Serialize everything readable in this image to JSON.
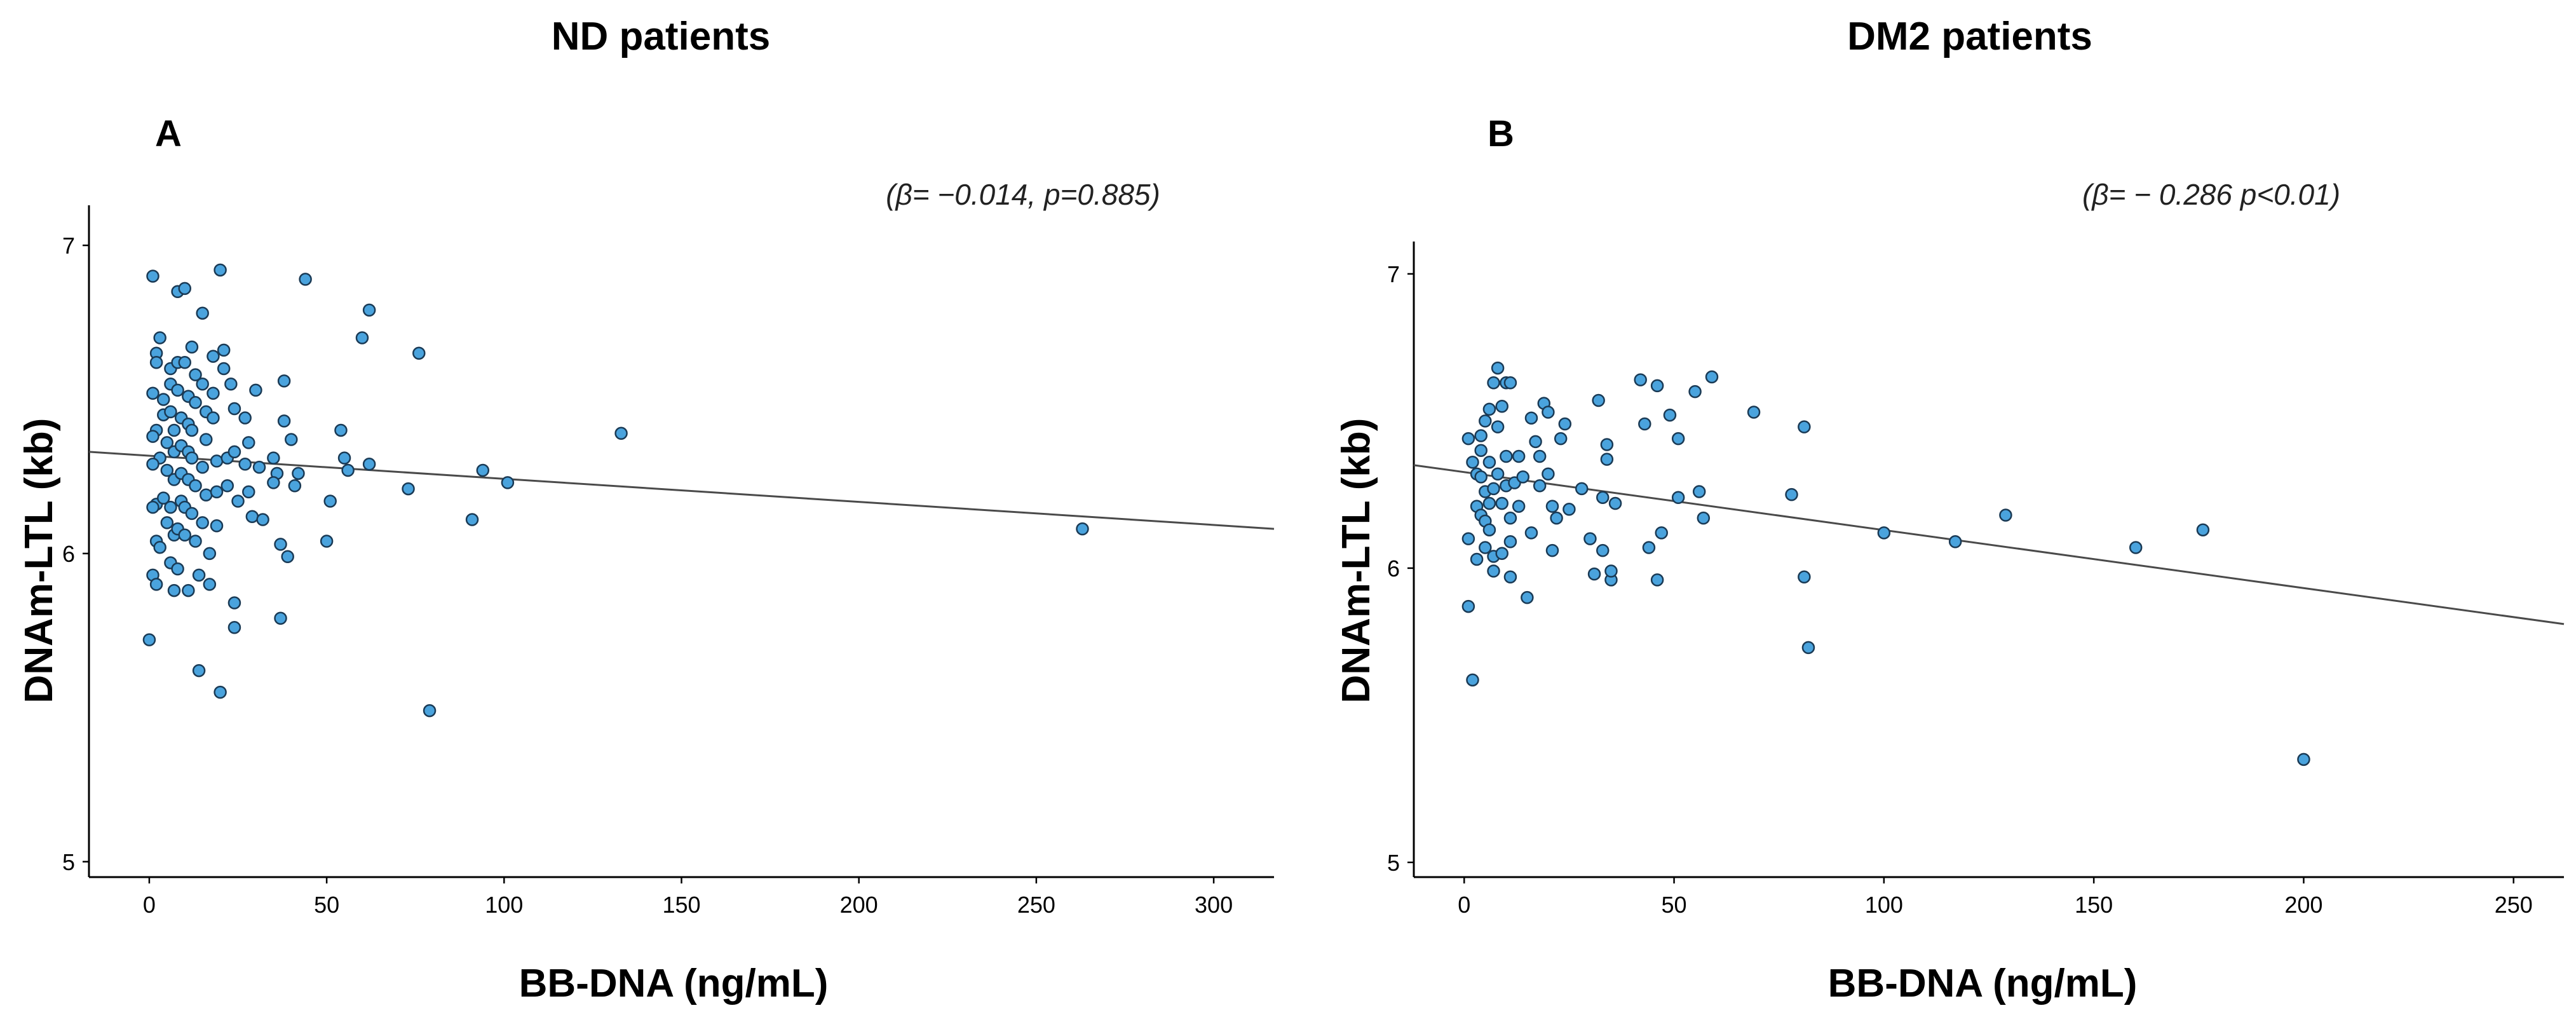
{
  "colors": {
    "point_fill": "#4aa3dd",
    "point_edge": "#1a3a55",
    "fit_line": "#4a4a4a"
  },
  "chart_data": [
    {
      "type": "scatter",
      "panel_label": "A",
      "title": "ND patients",
      "annotation": "(β= −0.014, p=0.885)",
      "xlabel": "BB-DNA (ng/mL)",
      "ylabel": "DNAm-LTL (kb)",
      "xlim": [
        -17,
        317
      ],
      "ylim": [
        4.95,
        7.13
      ],
      "xticks": [
        0,
        50,
        100,
        150,
        200,
        250,
        300
      ],
      "yticks": [
        5,
        6,
        7
      ],
      "fit": {
        "x": [
          -17,
          317
        ],
        "y": [
          6.33,
          6.08
        ]
      },
      "points": [
        [
          1,
          6.9
        ],
        [
          2,
          6.65
        ],
        [
          2,
          6.62
        ],
        [
          3,
          6.7
        ],
        [
          1,
          6.52
        ],
        [
          2,
          6.4
        ],
        [
          1,
          6.38
        ],
        [
          3,
          6.31
        ],
        [
          1,
          6.29
        ],
        [
          2,
          6.16
        ],
        [
          1,
          6.15
        ],
        [
          2,
          6.04
        ],
        [
          3,
          6.02
        ],
        [
          1,
          5.93
        ],
        [
          2,
          5.9
        ],
        [
          0,
          5.72
        ],
        [
          4,
          6.5
        ],
        [
          4,
          6.45
        ],
        [
          5,
          6.36
        ],
        [
          5,
          6.27
        ],
        [
          4,
          6.18
        ],
        [
          5,
          6.1
        ],
        [
          6,
          6.6
        ],
        [
          6,
          6.55
        ],
        [
          6,
          6.46
        ],
        [
          7,
          6.4
        ],
        [
          7,
          6.33
        ],
        [
          7,
          6.24
        ],
        [
          6,
          6.15
        ],
        [
          7,
          6.06
        ],
        [
          6,
          5.97
        ],
        [
          7,
          5.88
        ],
        [
          8,
          6.85
        ],
        [
          8,
          6.62
        ],
        [
          8,
          6.53
        ],
        [
          9,
          6.44
        ],
        [
          9,
          6.35
        ],
        [
          9,
          6.26
        ],
        [
          9,
          6.17
        ],
        [
          8,
          6.08
        ],
        [
          8,
          5.95
        ],
        [
          10,
          6.86
        ],
        [
          10,
          6.62
        ],
        [
          11,
          6.51
        ],
        [
          11,
          6.42
        ],
        [
          11,
          6.33
        ],
        [
          11,
          6.24
        ],
        [
          10,
          6.15
        ],
        [
          10,
          6.06
        ],
        [
          11,
          5.88
        ],
        [
          12,
          6.67
        ],
        [
          13,
          6.58
        ],
        [
          13,
          6.49
        ],
        [
          12,
          6.4
        ],
        [
          12,
          6.31
        ],
        [
          13,
          6.22
        ],
        [
          12,
          6.13
        ],
        [
          13,
          6.04
        ],
        [
          14,
          5.93
        ],
        [
          14,
          5.62
        ],
        [
          15,
          6.78
        ],
        [
          15,
          6.55
        ],
        [
          16,
          6.46
        ],
        [
          16,
          6.37
        ],
        [
          15,
          6.28
        ],
        [
          16,
          6.19
        ],
        [
          15,
          6.1
        ],
        [
          17,
          6.0
        ],
        [
          17,
          5.9
        ],
        [
          18,
          6.64
        ],
        [
          18,
          6.52
        ],
        [
          18,
          6.44
        ],
        [
          19,
          6.3
        ],
        [
          19,
          6.2
        ],
        [
          19,
          6.09
        ],
        [
          20,
          6.92
        ],
        [
          21,
          6.66
        ],
        [
          21,
          6.6
        ],
        [
          22,
          6.31
        ],
        [
          22,
          6.22
        ],
        [
          20,
          5.55
        ],
        [
          23,
          6.55
        ],
        [
          24,
          6.47
        ],
        [
          24,
          6.33
        ],
        [
          25,
          6.17
        ],
        [
          24,
          5.84
        ],
        [
          24,
          5.76
        ],
        [
          27,
          6.44
        ],
        [
          28,
          6.36
        ],
        [
          27,
          6.29
        ],
        [
          28,
          6.2
        ],
        [
          29,
          6.12
        ],
        [
          30,
          6.53
        ],
        [
          31,
          6.28
        ],
        [
          32,
          6.11
        ],
        [
          35,
          6.31
        ],
        [
          36,
          6.26
        ],
        [
          35,
          6.23
        ],
        [
          38,
          6.56
        ],
        [
          38,
          6.43
        ],
        [
          37,
          6.03
        ],
        [
          37,
          5.79
        ],
        [
          40,
          6.37
        ],
        [
          41,
          6.22
        ],
        [
          39,
          5.99
        ],
        [
          42,
          6.26
        ],
        [
          44,
          6.89
        ],
        [
          50,
          6.04
        ],
        [
          51,
          6.17
        ],
        [
          54,
          6.4
        ],
        [
          55,
          6.31
        ],
        [
          56,
          6.27
        ],
        [
          60,
          6.7
        ],
        [
          62,
          6.29
        ],
        [
          62,
          6.79
        ],
        [
          73,
          6.21
        ],
        [
          76,
          6.65
        ],
        [
          79,
          5.49
        ],
        [
          91,
          6.11
        ],
        [
          94,
          6.27
        ],
        [
          101,
          6.23
        ],
        [
          133,
          6.39
        ],
        [
          263,
          6.08
        ]
      ]
    },
    {
      "type": "scatter",
      "panel_label": "B",
      "title": "DM2 patients",
      "annotation": "(β= − 0.286 p<0.01)",
      "xlabel": "BB-DNA (ng/mL)",
      "ylabel": "DNAm-LTL (kb)",
      "xlim": [
        -12,
        262
      ],
      "ylim": [
        4.95,
        7.11
      ],
      "xticks": [
        0,
        50,
        100,
        150,
        200,
        250
      ],
      "yticks": [
        5,
        6,
        7
      ],
      "fit": {
        "x": [
          -12,
          262
        ],
        "y": [
          6.35,
          5.81
        ]
      },
      "points": [
        [
          1,
          6.44
        ],
        [
          1,
          6.1
        ],
        [
          1,
          5.87
        ],
        [
          2,
          6.36
        ],
        [
          2,
          5.62
        ],
        [
          3,
          6.32
        ],
        [
          3,
          6.21
        ],
        [
          3,
          6.03
        ],
        [
          4,
          6.45
        ],
        [
          4,
          6.4
        ],
        [
          4,
          6.31
        ],
        [
          4,
          6.18
        ],
        [
          5,
          6.5
        ],
        [
          5,
          6.26
        ],
        [
          5,
          6.16
        ],
        [
          5,
          6.07
        ],
        [
          6,
          6.54
        ],
        [
          6,
          6.36
        ],
        [
          6,
          6.22
        ],
        [
          6,
          6.13
        ],
        [
          7,
          6.63
        ],
        [
          7,
          6.27
        ],
        [
          7,
          6.04
        ],
        [
          7,
          5.99
        ],
        [
          8,
          6.68
        ],
        [
          8,
          6.48
        ],
        [
          8,
          6.32
        ],
        [
          9,
          6.55
        ],
        [
          9,
          6.22
        ],
        [
          9,
          6.05
        ],
        [
          10,
          6.63
        ],
        [
          10,
          6.38
        ],
        [
          10,
          6.28
        ],
        [
          11,
          6.63
        ],
        [
          11,
          6.17
        ],
        [
          11,
          6.09
        ],
        [
          11,
          5.97
        ],
        [
          12,
          6.29
        ],
        [
          13,
          6.38
        ],
        [
          13,
          6.21
        ],
        [
          14,
          6.31
        ],
        [
          15,
          5.9
        ],
        [
          16,
          6.51
        ],
        [
          16,
          6.12
        ],
        [
          17,
          6.43
        ],
        [
          18,
          6.38
        ],
        [
          18,
          6.28
        ],
        [
          19,
          6.56
        ],
        [
          20,
          6.53
        ],
        [
          20,
          6.32
        ],
        [
          21,
          6.21
        ],
        [
          21,
          6.06
        ],
        [
          22,
          6.17
        ],
        [
          23,
          6.44
        ],
        [
          24,
          6.49
        ],
        [
          25,
          6.2
        ],
        [
          28,
          6.27
        ],
        [
          30,
          6.1
        ],
        [
          31,
          5.98
        ],
        [
          32,
          6.57
        ],
        [
          33,
          6.24
        ],
        [
          33,
          6.06
        ],
        [
          34,
          6.37
        ],
        [
          34,
          6.42
        ],
        [
          35,
          5.96
        ],
        [
          35,
          5.99
        ],
        [
          36,
          6.22
        ],
        [
          42,
          6.64
        ],
        [
          43,
          6.49
        ],
        [
          44,
          6.07
        ],
        [
          46,
          6.62
        ],
        [
          46,
          5.96
        ],
        [
          47,
          6.12
        ],
        [
          49,
          6.52
        ],
        [
          51,
          6.44
        ],
        [
          51,
          6.24
        ],
        [
          55,
          6.6
        ],
        [
          56,
          6.26
        ],
        [
          57,
          6.17
        ],
        [
          59,
          6.65
        ],
        [
          69,
          6.53
        ],
        [
          78,
          6.25
        ],
        [
          81,
          6.48
        ],
        [
          81,
          5.97
        ],
        [
          82,
          5.73
        ],
        [
          100,
          6.12
        ],
        [
          117,
          6.09
        ],
        [
          129,
          6.18
        ],
        [
          160,
          6.07
        ],
        [
          176,
          6.13
        ],
        [
          200,
          5.35
        ]
      ]
    }
  ]
}
